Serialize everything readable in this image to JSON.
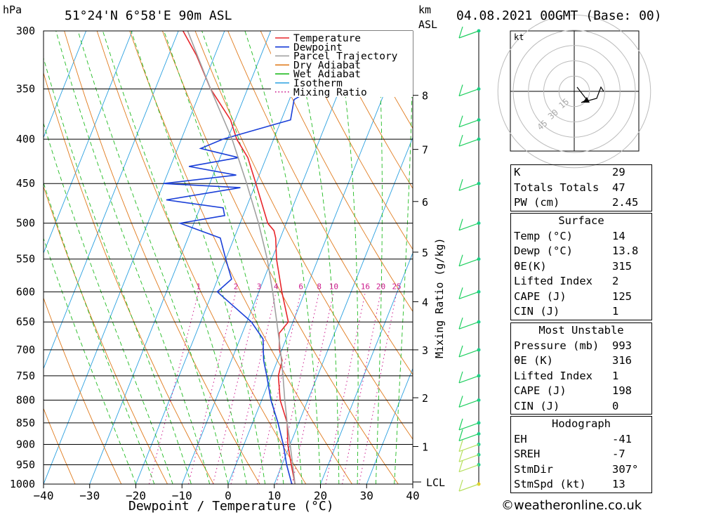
{
  "header": {
    "location": "51°24'N  6°58'E  90m  ASL",
    "datetime": "04.08.2021  00GMT  (Base: 00)",
    "hpa_label": "hPa",
    "km_label": "km",
    "asl_label": "ASL"
  },
  "legend": [
    {
      "label": "Temperature",
      "color": "#e8262b",
      "style": "solid"
    },
    {
      "label": "Dewpoint",
      "color": "#1a3fd8",
      "style": "solid"
    },
    {
      "label": "Parcel Trajectory",
      "color": "#a0a0a0",
      "style": "solid"
    },
    {
      "label": "Dry Adiabat",
      "color": "#e07a1c",
      "style": "solid"
    },
    {
      "label": "Wet Adiabat",
      "color": "#22bb22",
      "style": "solid"
    },
    {
      "label": "Isotherm",
      "color": "#2aa0e0",
      "style": "solid"
    },
    {
      "label": "Mixing Ratio",
      "color": "#cc1a8c",
      "style": "dotted"
    }
  ],
  "axes": {
    "xlabel": "Dewpoint / Temperature (°C)",
    "mixing_label": "Mixing Ratio (g/kg)",
    "lcl_label": "LCL",
    "mixing_ratio_ticks": [
      "1",
      "2",
      "3",
      "4",
      "6",
      "8",
      "10",
      "16",
      "20",
      "25"
    ]
  },
  "chart_data": {
    "type": "line",
    "title": "51°24'N 6°58'E 90m ASL — 04.08.2021 00GMT (Base: 00)",
    "xlabel": "Dewpoint / Temperature (°C)",
    "ylabel": "hPa",
    "xlim": [
      -40,
      40
    ],
    "ylim": [
      1000,
      300
    ],
    "y_scale": "log",
    "x_ticks": [
      -40,
      -30,
      -20,
      -10,
      0,
      10,
      20,
      30,
      40
    ],
    "pressure_levels": [
      300,
      350,
      400,
      450,
      500,
      550,
      600,
      650,
      700,
      750,
      800,
      850,
      900,
      950,
      1000
    ],
    "height_km_ticks": [
      {
        "km": 1,
        "p": 905
      },
      {
        "km": 2,
        "p": 795
      },
      {
        "km": 3,
        "p": 700
      },
      {
        "km": 4,
        "p": 616
      },
      {
        "km": 5,
        "p": 540
      },
      {
        "km": 6,
        "p": 472
      },
      {
        "km": 7,
        "p": 411
      },
      {
        "km": 8,
        "p": 356
      }
    ],
    "mixing_ratios_gkg": [
      1,
      2,
      3,
      4,
      6,
      8,
      10,
      16,
      20,
      25
    ],
    "series": [
      {
        "name": "Temperature",
        "color": "#e8262b",
        "p": [
          1000,
          950,
          900,
          850,
          800,
          750,
          720,
          700,
          670,
          650,
          600,
          550,
          520,
          510,
          500,
          450,
          420,
          400,
          380,
          350,
          320,
          300
        ],
        "t": [
          14.5,
          12,
          9.5,
          7.5,
          4,
          1.5,
          1,
          -0.5,
          -2,
          -1,
          -5,
          -9,
          -11,
          -12,
          -14,
          -20,
          -24,
          -28,
          -31,
          -38,
          -44,
          -49
        ]
      },
      {
        "name": "Dewpoint",
        "color": "#1a3fd8",
        "p": [
          1000,
          950,
          900,
          850,
          800,
          750,
          720,
          700,
          680,
          650,
          600,
          580,
          550,
          520,
          500,
          490,
          480,
          470,
          455,
          450,
          440,
          430,
          420,
          410,
          400,
          380,
          360,
          350,
          330,
          320,
          300
        ],
        "t": [
          13.8,
          11,
          8.5,
          5.5,
          2,
          -1,
          -3,
          -4,
          -5,
          -9,
          -19,
          -17,
          -20,
          -23,
          -33,
          -24,
          -25,
          -38,
          -23,
          -40,
          -25,
          -36,
          -26,
          -35,
          -31,
          -18,
          -19,
          -16,
          -16,
          -14,
          -24
        ]
      },
      {
        "name": "Parcel Trajectory",
        "color": "#a0a0a0",
        "p": [
          1000,
          950,
          900,
          850,
          800,
          750,
          700,
          650,
          600,
          550,
          500,
          450,
          400,
          350,
          300
        ],
        "t": [
          14.5,
          12.3,
          10,
          7.5,
          5,
          2.5,
          -0.3,
          -3.5,
          -7,
          -11,
          -16,
          -22,
          -29,
          -38,
          -48
        ]
      }
    ],
    "wind_barbs_pressure": [
      1000,
      950,
      925,
      900,
      875,
      850,
      800,
      750,
      700,
      650,
      600,
      550,
      500,
      450,
      400,
      380,
      350,
      300
    ],
    "hodograph": {
      "rings_kt": [
        15,
        30,
        45
      ],
      "unit": "kt"
    }
  },
  "indices": {
    "K": "29",
    "Totals Totals": "47",
    "PW (cm)": "2.45"
  },
  "surface": {
    "title": "Surface",
    "rows": [
      {
        "k": "Temp (°C)",
        "v": "14"
      },
      {
        "k": "Dewp (°C)",
        "v": "13.8"
      },
      {
        "k": "θE(K)",
        "v": "315"
      },
      {
        "k": "Lifted Index",
        "v": "2"
      },
      {
        "k": "CAPE (J)",
        "v": "125"
      },
      {
        "k": "CIN (J)",
        "v": "1"
      }
    ]
  },
  "most_unstable": {
    "title": "Most Unstable",
    "rows": [
      {
        "k": "Pressure (mb)",
        "v": "993"
      },
      {
        "k": "θE (K)",
        "v": "316"
      },
      {
        "k": "Lifted Index",
        "v": "1"
      },
      {
        "k": "CAPE (J)",
        "v": "198"
      },
      {
        "k": "CIN (J)",
        "v": "0"
      }
    ]
  },
  "hodograph_table": {
    "title": "Hodograph",
    "rows": [
      {
        "k": "EH",
        "v": "-41"
      },
      {
        "k": "SREH",
        "v": "-7"
      },
      {
        "k": "StmDir",
        "v": "307°"
      },
      {
        "k": "StmSpd (kt)",
        "v": "13"
      }
    ]
  },
  "credit": "©weatheronline.co.uk"
}
